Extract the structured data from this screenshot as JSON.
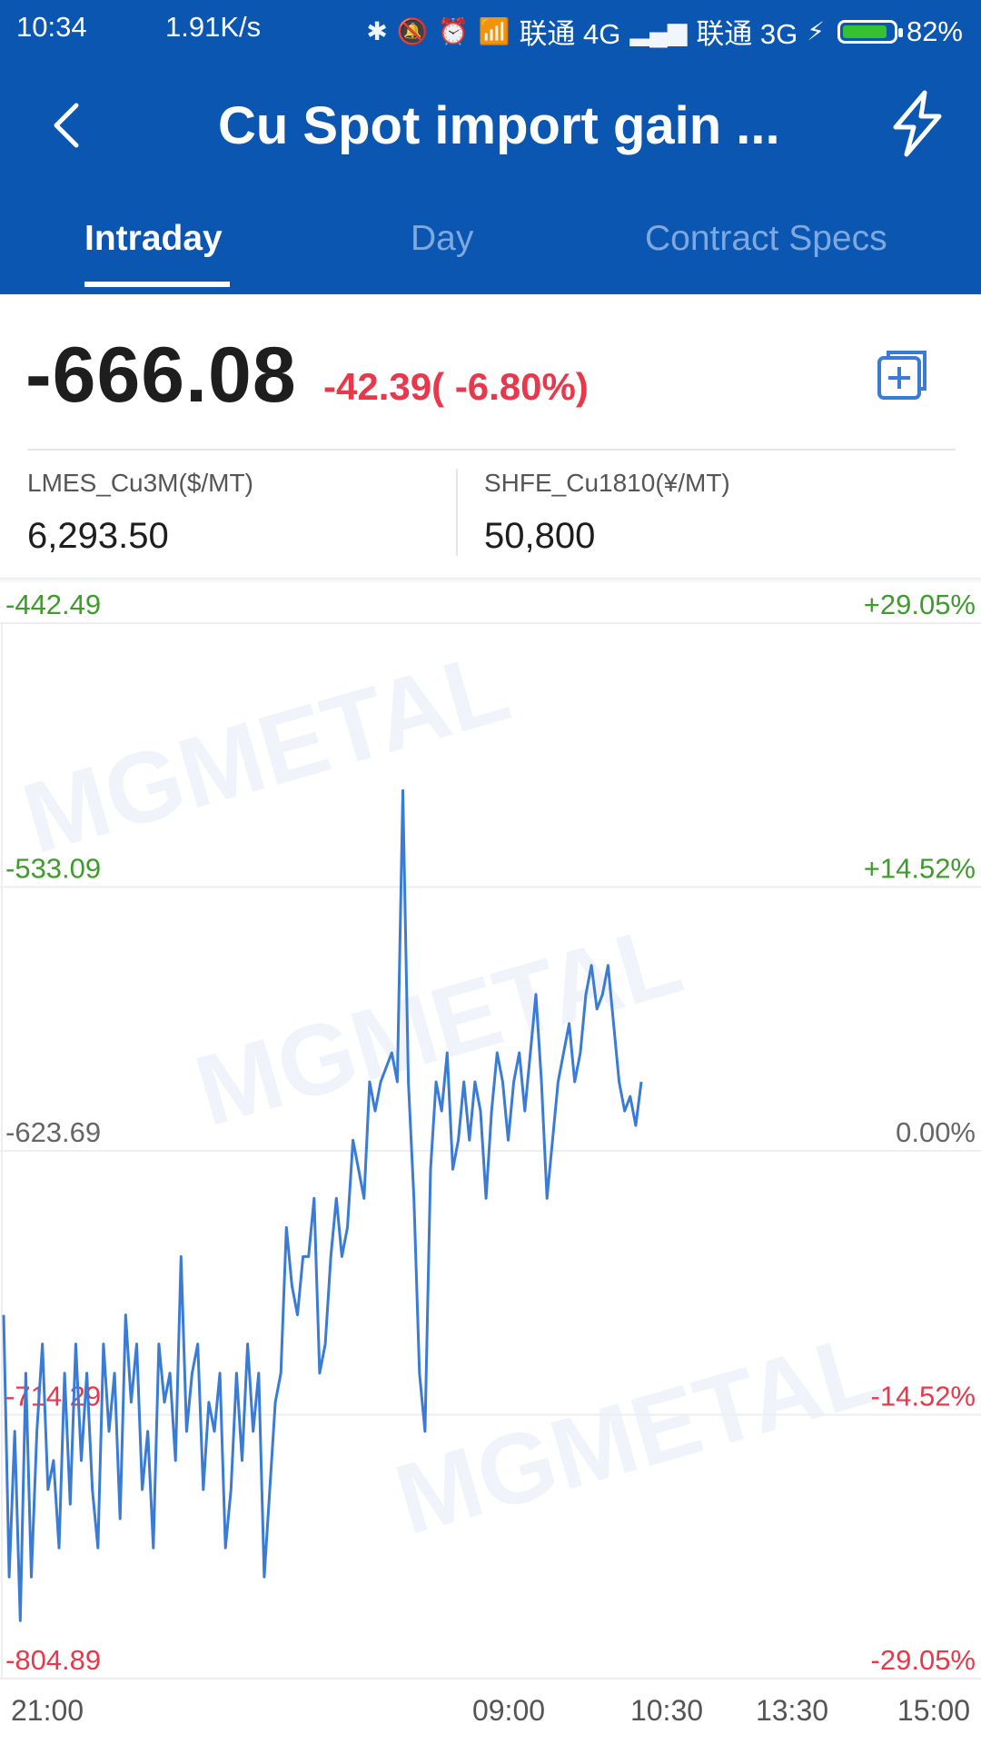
{
  "status_bar": {
    "time": "10:34",
    "net_speed": "1.91K/s",
    "carrier1": "联通 4G",
    "carrier2": "联通 3G",
    "battery": "82%"
  },
  "header": {
    "title": "Cu Spot import gain ...",
    "tabs": [
      {
        "label": "Intraday",
        "active": true
      },
      {
        "label": "Day",
        "active": false
      },
      {
        "label": "Contract Specs",
        "active": false
      }
    ]
  },
  "quote": {
    "price": "-666.08",
    "change": "-42.39( -6.80%)",
    "lme_label": "LMES_Cu3M($/MT)",
    "lme_value": "6,293.50",
    "shfe_label": "SHFE_Cu1810(¥/MT)",
    "shfe_value": "50,800"
  },
  "colors": {
    "header_bg": "#0b56b0",
    "up": "#3f9b2e",
    "down": "#e8384b",
    "line": "#3a7bd5"
  },
  "chart_data": {
    "type": "line",
    "y_left_ticks": [
      "-442.49",
      "-533.09",
      "-623.69",
      "-714.29",
      "-804.89"
    ],
    "y_right_ticks": [
      "+29.05%",
      "+14.52%",
      "0.00%",
      "-14.52%",
      "-29.05%"
    ],
    "x_ticks": [
      "21:00",
      "09:00",
      "10:30",
      "13:30",
      "15:00"
    ],
    "ylim": [
      -804.89,
      -442.49
    ],
    "watermark": "MGMETAL",
    "series": [
      {
        "values": [
          -680,
          -770,
          -720,
          -785,
          -700,
          -770,
          -720,
          -690,
          -740,
          -730,
          -760,
          -700,
          -745,
          -690,
          -730,
          -700,
          -740,
          -760,
          -690,
          -720,
          -700,
          -750,
          -680,
          -710,
          -690,
          -740,
          -720,
          -760,
          -690,
          -710,
          -700,
          -730,
          -660,
          -720,
          -700,
          -690,
          -740,
          -710,
          -720,
          -700,
          -760,
          -740,
          -700,
          -730,
          -690,
          -720,
          -700,
          -770,
          -740,
          -710,
          -700,
          -650,
          -670,
          -680,
          -660,
          -660,
          -640,
          -700,
          -690,
          -660,
          -640,
          -660,
          -650,
          -620,
          -630,
          -640,
          -600,
          -610,
          -600,
          -595,
          -590,
          -600,
          -500,
          -600,
          -640,
          -700,
          -720,
          -630,
          -600,
          -610,
          -590,
          -630,
          -620,
          -600,
          -620,
          -600,
          -610,
          -640,
          -610,
          -590,
          -600,
          -620,
          -600,
          -590,
          -610,
          -590,
          -570,
          -600,
          -640,
          -620,
          -600,
          -590,
          -580,
          -600,
          -590,
          -570,
          -560,
          -575,
          -570,
          -560,
          -580,
          -600,
          -610,
          -605,
          -615,
          -600
        ]
      }
    ]
  }
}
